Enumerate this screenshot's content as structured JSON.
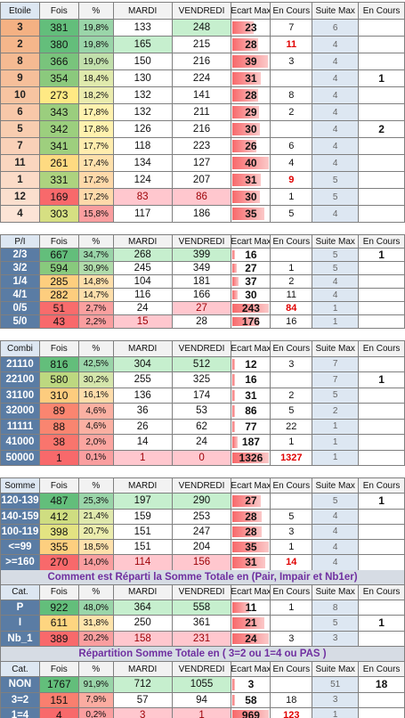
{
  "sections": [
    {
      "header": [
        "Etoile",
        "Fois",
        "%",
        "MARDI",
        "VENDREDI",
        "Ecart Max",
        "En Cours",
        "Suite Max",
        "En Cours"
      ],
      "alert_rows": [
        1,
        9
      ],
      "rows": [
        [
          3,
          381,
          "19,8%",
          133,
          248,
          23,
          7,
          6,
          null
        ],
        [
          2,
          380,
          "19,8%",
          165,
          215,
          28,
          11,
          4,
          null
        ],
        [
          8,
          366,
          "19,0%",
          150,
          216,
          39,
          3,
          4,
          null
        ],
        [
          9,
          354,
          "18,4%",
          130,
          224,
          31,
          null,
          4,
          1
        ],
        [
          10,
          273,
          "18,2%",
          132,
          141,
          28,
          8,
          4,
          null
        ],
        [
          6,
          343,
          "17,8%",
          132,
          211,
          29,
          2,
          4,
          null
        ],
        [
          5,
          342,
          "17,8%",
          126,
          216,
          30,
          null,
          4,
          2
        ],
        [
          7,
          341,
          "17,7%",
          118,
          223,
          26,
          6,
          4,
          null
        ],
        [
          11,
          261,
          "17,4%",
          134,
          127,
          40,
          4,
          4,
          null
        ],
        [
          1,
          331,
          "17,2%",
          124,
          207,
          31,
          9,
          5,
          null
        ],
        [
          12,
          169,
          "17,2%",
          83,
          86,
          30,
          1,
          5,
          null
        ],
        [
          4,
          303,
          "15,8%",
          117,
          186,
          35,
          5,
          4,
          null
        ]
      ]
    },
    {
      "header": [
        "P/I",
        "Fois",
        "%",
        "MARDI",
        "VENDREDI",
        "Ecart Max",
        "En Cours",
        "Suite Max",
        "En Cours"
      ],
      "alert_rows": [
        4
      ],
      "rows": [
        [
          "2/3",
          667,
          "34,7%",
          268,
          399,
          16,
          null,
          5,
          1
        ],
        [
          "3/2",
          594,
          "30,9%",
          245,
          349,
          27,
          1,
          5,
          null
        ],
        [
          "1/4",
          285,
          "14,8%",
          104,
          181,
          37,
          2,
          4,
          null
        ],
        [
          "4/1",
          282,
          "14,7%",
          116,
          166,
          30,
          11,
          4,
          null
        ],
        [
          "0/5",
          51,
          "2,7%",
          24,
          27,
          243,
          84,
          1,
          null
        ],
        [
          "5/0",
          43,
          "2,2%",
          15,
          28,
          176,
          16,
          1,
          null
        ]
      ]
    },
    {
      "header": [
        "Combi",
        "Fois",
        "%",
        "MARDI",
        "VENDREDI",
        "Ecart Max",
        "En Cours",
        "Suite Max",
        "En Cours"
      ],
      "alert_rows": [
        6
      ],
      "rows": [
        [
          21110,
          816,
          "42,5%",
          304,
          512,
          12,
          3,
          7,
          null
        ],
        [
          22100,
          580,
          "30,2%",
          255,
          325,
          16,
          null,
          7,
          1
        ],
        [
          31100,
          310,
          "16,1%",
          136,
          174,
          31,
          2,
          5,
          null
        ],
        [
          32000,
          89,
          "4,6%",
          36,
          53,
          86,
          5,
          2,
          null
        ],
        [
          11111,
          88,
          "4,6%",
          26,
          62,
          77,
          22,
          1,
          null
        ],
        [
          41000,
          38,
          "2,0%",
          14,
          24,
          187,
          1,
          1,
          null
        ],
        [
          50000,
          1,
          "0,1%",
          1,
          0,
          1326,
          1327,
          1,
          null
        ]
      ]
    },
    {
      "header": [
        "Somme",
        "Fois",
        "%",
        "MARDI",
        "VENDREDI",
        "Ecart Max",
        "En Cours",
        "Suite Max",
        "En Cours"
      ],
      "alert_rows": [
        4
      ],
      "rows": [
        [
          "120-139",
          487,
          "25,3%",
          197,
          290,
          27,
          null,
          5,
          1
        ],
        [
          "140-159",
          412,
          "21,4%",
          159,
          253,
          28,
          5,
          4,
          null
        ],
        [
          "100-119",
          398,
          "20,7%",
          151,
          247,
          28,
          3,
          4,
          null
        ],
        [
          "<=99",
          355,
          "18,5%",
          151,
          204,
          35,
          1,
          4,
          null
        ],
        [
          ">=160",
          270,
          "14,0%",
          114,
          156,
          31,
          14,
          4,
          null
        ]
      ]
    },
    {
      "banner": "Comment est Réparti la Somme Totale en (Pair, Impair et Nb1er)",
      "header": [
        "Cat.",
        "Fois",
        "%",
        "MARDI",
        "VENDREDI",
        "Ecart Max",
        "En Cours",
        "Suite Max",
        "En Cours"
      ],
      "alert_rows": [],
      "rows": [
        [
          "P",
          922,
          "48,0%",
          364,
          558,
          11,
          1,
          8,
          null
        ],
        [
          "I",
          611,
          "31,8%",
          250,
          361,
          21,
          null,
          5,
          1
        ],
        [
          "Nb_1",
          389,
          "20,2%",
          158,
          231,
          24,
          3,
          3,
          null
        ]
      ]
    },
    {
      "banner": "Répartition Somme Totale en ( 3=2 ou 1=4 ou PAS )",
      "header": [
        "Cat.",
        "Fois",
        "%",
        "MARDI",
        "VENDREDI",
        "Ecart Max",
        "En Cours",
        "Suite Max",
        "En Cours"
      ],
      "alert_rows": [
        2
      ],
      "rows": [
        [
          "NON",
          1767,
          "91,9%",
          712,
          1055,
          3,
          null,
          51,
          18
        ],
        [
          "3=2",
          151,
          "7,9%",
          57,
          94,
          58,
          18,
          3,
          null
        ],
        [
          "1=4",
          4,
          "0,2%",
          3,
          1,
          969,
          123,
          1,
          null
        ]
      ]
    }
  ]
}
